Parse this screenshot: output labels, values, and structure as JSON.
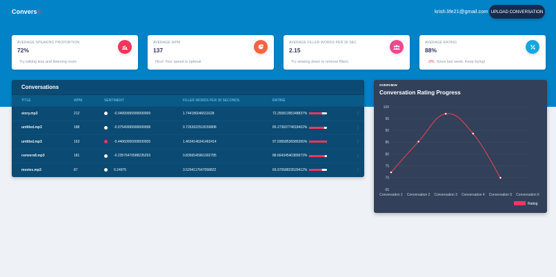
{
  "header": {
    "brand_text": "Convers",
    "brand_accent": "8",
    "user_email": "krish.life21@gmail.com",
    "upload_button": "UPLOAD CONVERSATION"
  },
  "stats": [
    {
      "label": "AVERAGE SPEAKING PROPORTION",
      "value": "72%",
      "note": "Try talking less and listening more",
      "icon": "bar-chart-icon",
      "color": "#f5365c"
    },
    {
      "label": "AVERAGE WPM",
      "value": "137",
      "note": "Nice! Your speed is optimal.",
      "icon": "pie-chart-icon",
      "color": "#fb6340"
    },
    {
      "label": "AVERAGE FILLER WORDS PER 30 SEC",
      "value": "2.15",
      "note": "Try slowing down to remove fillers.",
      "icon": "users-icon",
      "color": "#f3468f"
    },
    {
      "label": "AVERAGE RATING",
      "value": "88%",
      "change": "9%",
      "change_direction": "down",
      "note": "Since last week. Keep trying!",
      "icon": "percent-icon",
      "color": "#11a8e3"
    }
  ],
  "conversations": {
    "title": "Conversations",
    "columns": [
      "TITLE",
      "WPM",
      "SENTIMENT",
      "FILLER WORDS PER 30 SECONDS",
      "RATING"
    ],
    "rows": [
      {
        "title": "story.mp3",
        "wpm": "212",
        "sentiment": "-0.04999999999999999",
        "sentiment_color": "#ffffff",
        "filler": "1.744186046511628",
        "rating": "72.25581395348837%",
        "rating_pct": 72.26
      },
      {
        "title": "untitled.mp3",
        "wpm": "188",
        "sentiment": "-0.07549999999999998",
        "sentiment_color": "#ffffff",
        "filler": "0.7263922518159808",
        "rating": "85.27360774818402%",
        "rating_pct": 85.27
      },
      {
        "title": "untitled.mp3",
        "wpm": "163",
        "sentiment": "-0.44060000000000005",
        "sentiment_color": "#f5365c",
        "filler": "1.4634146341463414",
        "rating": "97.03658536585365%",
        "rating_pct": 97.04
      },
      {
        "title": "convers8.mp3",
        "wpm": "181",
        "sentiment": "-0.23576470588235293",
        "sentiment_color": "#ffffff",
        "filler": "0.8356545961002785",
        "rating": "88.66434540389972%",
        "rating_pct": 88.66
      },
      {
        "title": "movies.mp3",
        "wpm": "87",
        "sentiment": "0.24975",
        "sentiment_color": "#ffffff",
        "filler": "3.5294117647058822",
        "rating": "69.97058823529412%",
        "rating_pct": 69.97
      }
    ],
    "row_menu_icon": "⋮"
  },
  "chart_panel": {
    "overview_label": "OVERVIEW",
    "title": "Conversation Rating Progress"
  },
  "chart_data": {
    "type": "line",
    "title": "Conversation Rating Progress",
    "categories": [
      "Conversation 1",
      "Conversation 2",
      "Conversation 3",
      "Conversation 4",
      "Conversation 5",
      "Conversation 6"
    ],
    "series": [
      {
        "name": "Rating",
        "color": "#f5365c",
        "values": [
          72.26,
          85.27,
          97.04,
          88.66,
          69.97,
          null
        ]
      }
    ],
    "yticks": [
      100,
      95,
      90,
      85,
      80,
      75,
      70,
      65
    ],
    "ylim": [
      65,
      100
    ],
    "xlabel": "",
    "ylabel": "",
    "grid": true,
    "legend_position": "bottom-right"
  }
}
